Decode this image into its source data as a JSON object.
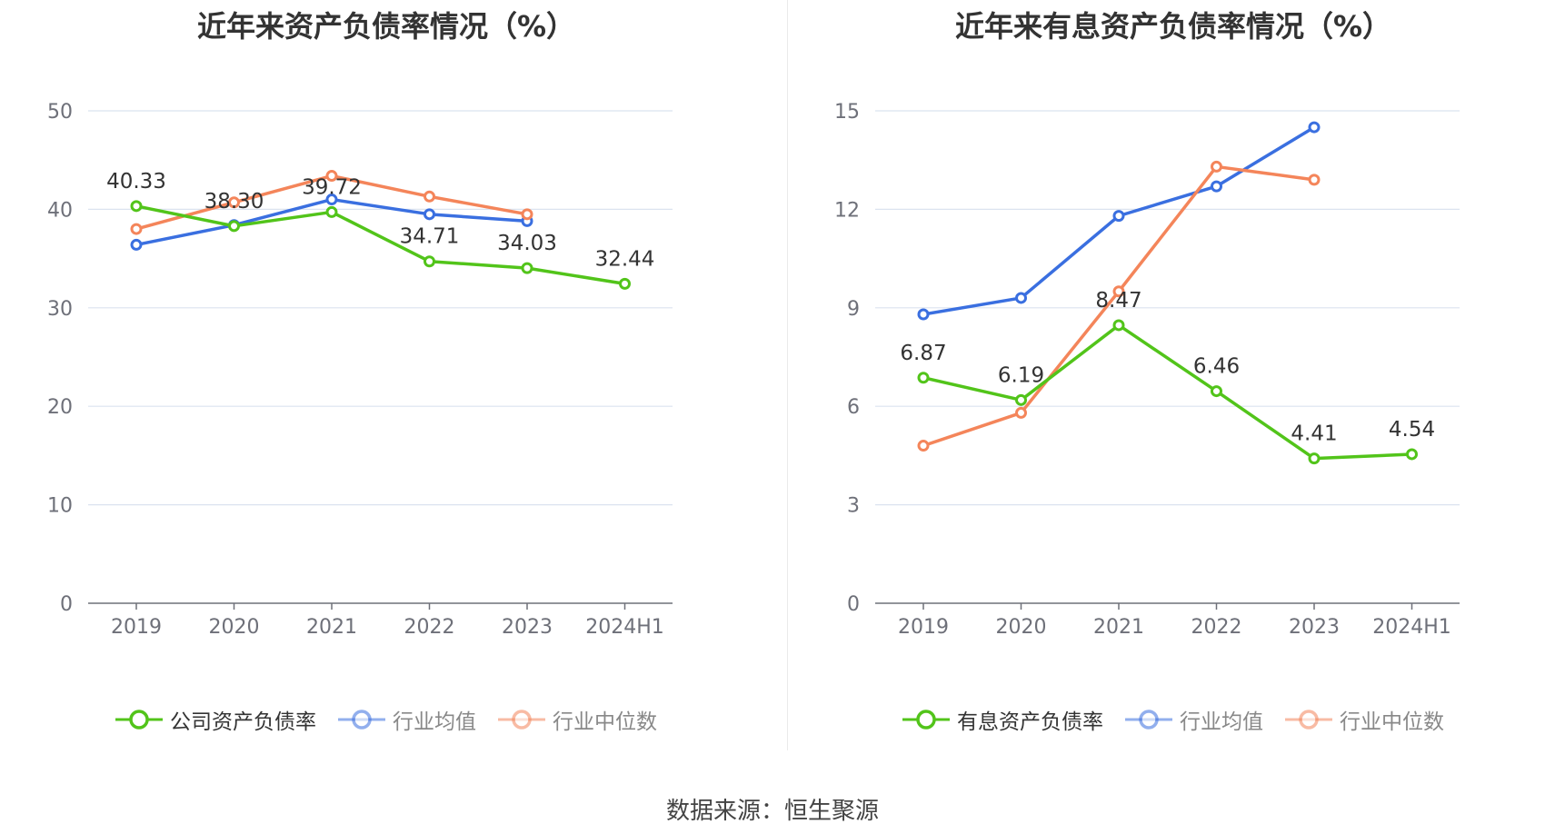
{
  "source_text": "数据来源：恒生聚源",
  "colors": {
    "company": "#52c41a",
    "industry_avg": "#3a6fe0",
    "industry_median": "#f4855a",
    "grid": "#dbe3ef",
    "axis": "#6e7079"
  },
  "chart_data": [
    {
      "type": "line",
      "title": "近年来资产负债率情况（%）",
      "categories": [
        "2019",
        "2020",
        "2021",
        "2022",
        "2023",
        "2024H1"
      ],
      "ylim": [
        0,
        50
      ],
      "yticks": [
        0,
        10,
        20,
        30,
        40,
        50
      ],
      "grid": true,
      "legend_position": "bottom",
      "series": [
        {
          "name": "公司资产负债率",
          "color_key": "company",
          "values": [
            40.33,
            38.3,
            39.72,
            34.71,
            34.03,
            32.44
          ],
          "labels": [
            "40.33",
            "38.30",
            "39.72",
            "34.71",
            "34.03",
            "32.44"
          ]
        },
        {
          "name": "行业均值",
          "color_key": "industry_avg",
          "values": [
            36.4,
            38.4,
            41.0,
            39.5,
            38.8,
            null
          ]
        },
        {
          "name": "行业中位数",
          "color_key": "industry_median",
          "values": [
            38.0,
            40.7,
            43.4,
            41.3,
            39.5,
            null
          ]
        }
      ]
    },
    {
      "type": "line",
      "title": "近年来有息资产负债率情况（%）",
      "categories": [
        "2019",
        "2020",
        "2021",
        "2022",
        "2023",
        "2024H1"
      ],
      "ylim": [
        0,
        15
      ],
      "yticks": [
        0,
        3,
        6,
        9,
        12,
        15
      ],
      "grid": true,
      "legend_position": "bottom",
      "series": [
        {
          "name": "有息资产负债率",
          "color_key": "company",
          "values": [
            6.87,
            6.19,
            8.47,
            6.46,
            4.41,
            4.54
          ],
          "labels": [
            "6.87",
            "6.19",
            "8.47",
            "6.46",
            "4.41",
            "4.54"
          ]
        },
        {
          "name": "行业均值",
          "color_key": "industry_avg",
          "values": [
            8.8,
            9.3,
            11.8,
            12.7,
            14.5,
            null
          ]
        },
        {
          "name": "行业中位数",
          "color_key": "industry_median",
          "values": [
            4.8,
            5.8,
            9.5,
            13.3,
            12.9,
            null
          ]
        }
      ]
    }
  ]
}
